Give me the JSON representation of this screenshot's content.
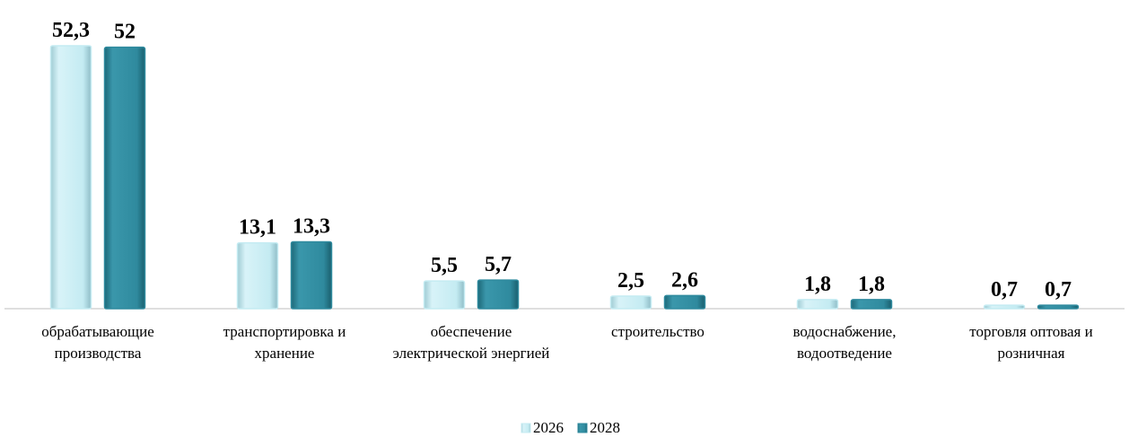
{
  "chart_data": {
    "type": "bar",
    "categories": [
      "обрабатывающие производства",
      "транспортировка и хранение",
      "обеспечение электрической энергией",
      "строительство",
      "водоснабжение, водоотведение",
      "торговля оптовая и розничная"
    ],
    "series": [
      {
        "name": "2026",
        "color": "#c4ebf2",
        "values": [
          52.3,
          13.1,
          5.5,
          2.5,
          1.8,
          0.7
        ],
        "value_labels": [
          "52,3",
          "13,1",
          "5,5",
          "2,5",
          "1,8",
          "0,7"
        ]
      },
      {
        "name": "2028",
        "color": "#2f8a9e",
        "values": [
          52,
          13.3,
          5.7,
          2.6,
          1.8,
          0.7
        ],
        "value_labels": [
          "52",
          "13,3",
          "5,7",
          "2,6",
          "1,8",
          "0,7"
        ]
      }
    ],
    "legend": "bottom"
  }
}
